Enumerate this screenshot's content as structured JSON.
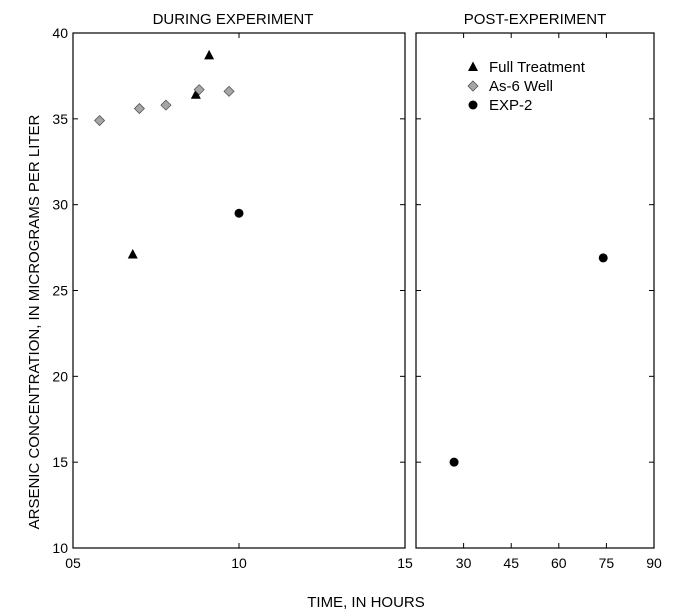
{
  "chart_data": {
    "type": "scatter",
    "ylabel": "ARSENIC CONCENTRATION, IN MICROGRAMS PER LITER",
    "xlabel": "TIME, IN HOURS",
    "ylim": [
      10,
      40
    ],
    "yticks": [
      "10",
      "15",
      "20",
      "25",
      "30",
      "35",
      "40"
    ],
    "legend_placement": "top-right of right panel",
    "grid": false,
    "panels": [
      {
        "title": "DURING EXPERIMENT",
        "xlim": [
          5,
          15
        ],
        "xticks": [
          {
            "value": 5,
            "label": "05"
          },
          {
            "value": 10,
            "label": "10"
          },
          {
            "value": 15,
            "label": "15"
          }
        ]
      },
      {
        "title": "POST-EXPERIMENT",
        "xlim": [
          15,
          90
        ],
        "xticks": [
          {
            "value": 30,
            "label": "30"
          },
          {
            "value": 45,
            "label": "45"
          },
          {
            "value": 60,
            "label": "60"
          },
          {
            "value": 75,
            "label": "75"
          },
          {
            "value": 90,
            "label": "90"
          }
        ]
      }
    ],
    "series": [
      {
        "name": "Full Treatment",
        "marker": "triangle",
        "color": "#000000",
        "points": [
          {
            "panel": 0,
            "x": 6.8,
            "y": 27.1
          },
          {
            "panel": 0,
            "x": 8.7,
            "y": 36.4
          },
          {
            "panel": 0,
            "x": 9.1,
            "y": 38.7
          }
        ]
      },
      {
        "name": "As-6 Well",
        "marker": "diamond",
        "color": "#a6a6a6",
        "points": [
          {
            "panel": 0,
            "x": 5.8,
            "y": 34.9
          },
          {
            "panel": 0,
            "x": 7.0,
            "y": 35.6
          },
          {
            "panel": 0,
            "x": 7.8,
            "y": 35.8
          },
          {
            "panel": 0,
            "x": 8.8,
            "y": 36.7
          },
          {
            "panel": 0,
            "x": 9.7,
            "y": 36.6
          }
        ]
      },
      {
        "name": "EXP-2",
        "marker": "circle",
        "color": "#000000",
        "points": [
          {
            "panel": 0,
            "x": 10.0,
            "y": 29.5
          },
          {
            "panel": 1,
            "x": 27.0,
            "y": 15.0
          },
          {
            "panel": 1,
            "x": 74.0,
            "y": 26.9
          }
        ]
      }
    ]
  }
}
